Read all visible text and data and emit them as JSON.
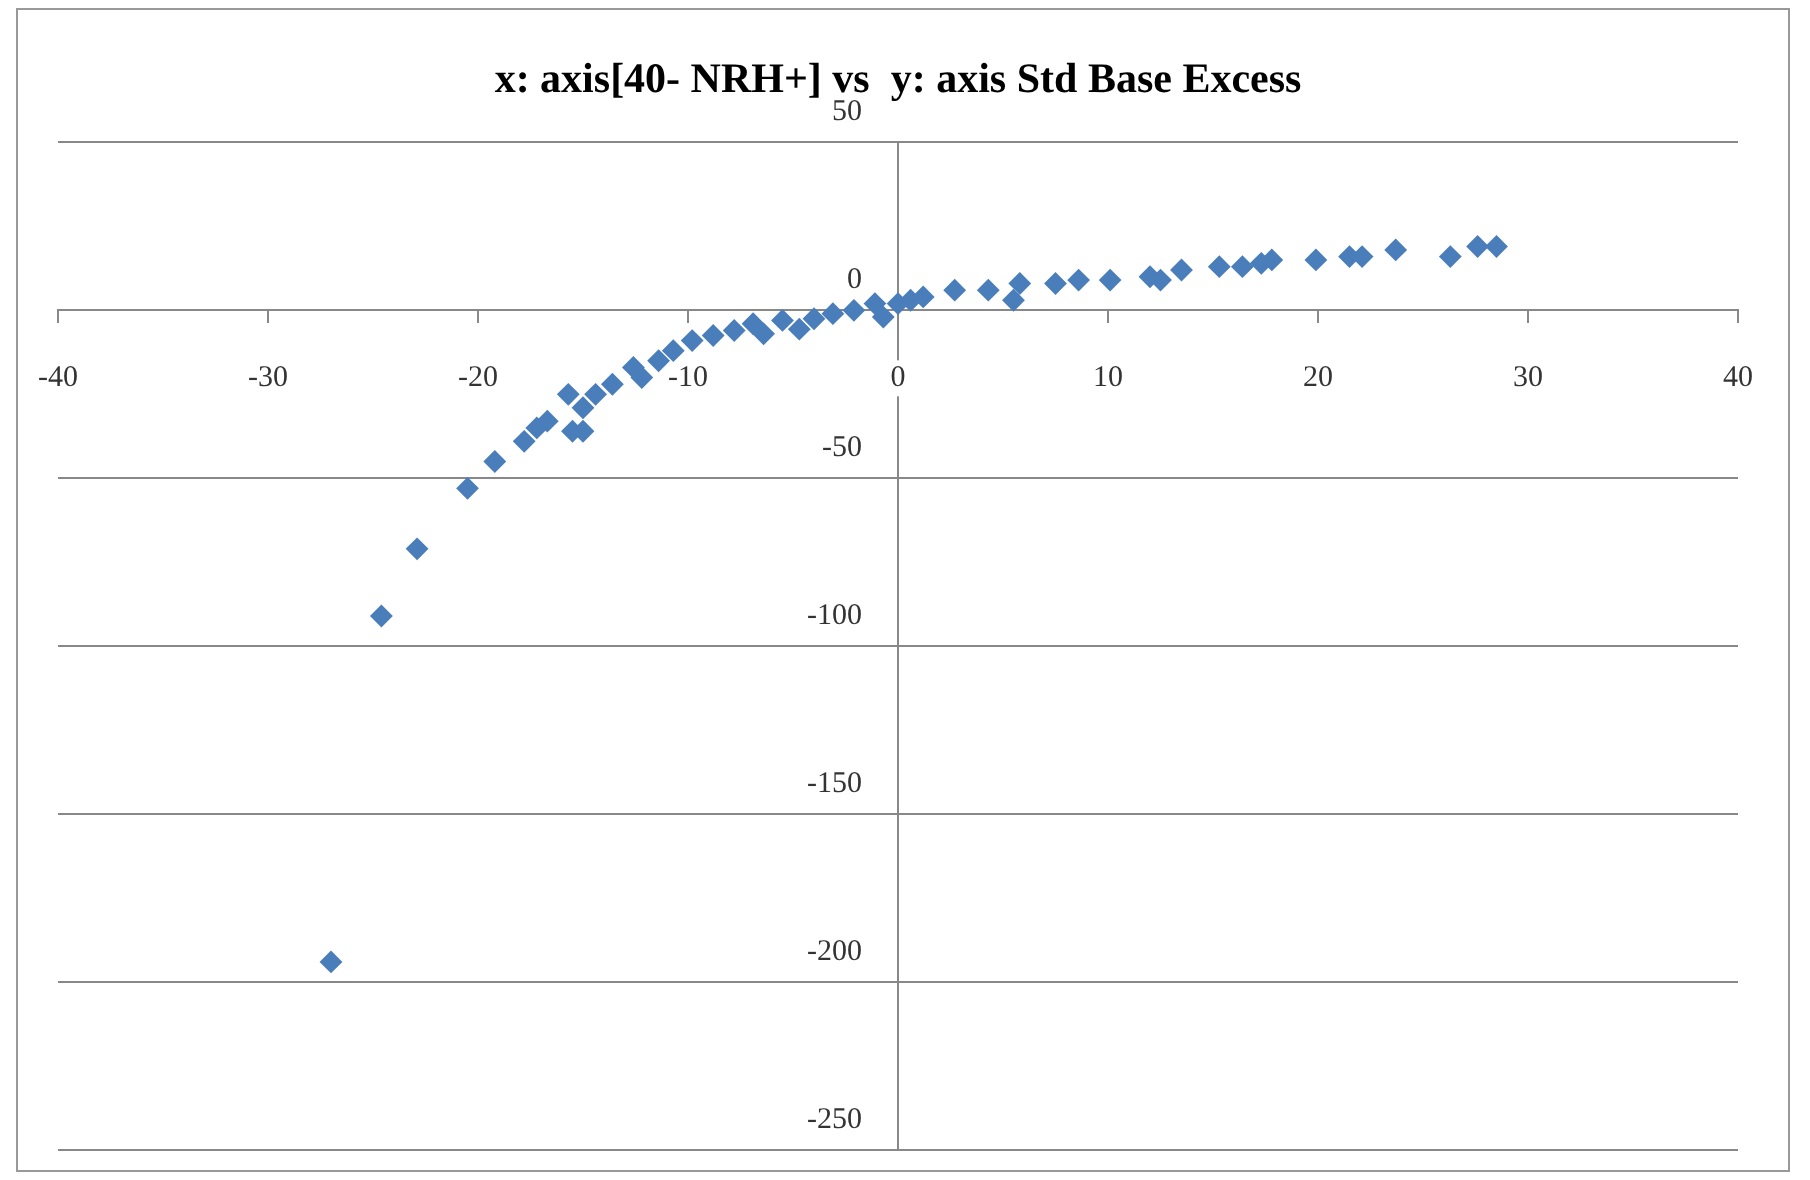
{
  "chart_data": {
    "type": "scatter",
    "title": "x: axis[40- NRH+] vs  y: axis Std Base Excess",
    "x": [
      -27.0,
      -24.6,
      -22.9,
      -20.5,
      -19.2,
      -17.8,
      -17.2,
      -16.7,
      -15.7,
      -15.5,
      -15.0,
      -15.0,
      -14.4,
      -13.6,
      -12.6,
      -12.2,
      -11.4,
      -10.7,
      -9.8,
      -8.8,
      -7.8,
      -6.9,
      -6.4,
      -5.5,
      -4.7,
      -4.0,
      -3.1,
      -2.1,
      -1.1,
      -0.7,
      0,
      0.6,
      1.2,
      2.7,
      4.3,
      5.5,
      5.8,
      7.5,
      8.6,
      10.1,
      12.0,
      12.5,
      13.5,
      15.3,
      16.4,
      17.3,
      17.8,
      19.9,
      21.5,
      22.1,
      23.7,
      26.3,
      27.6,
      28.5
    ],
    "values": [
      -194,
      -91,
      -71,
      -53,
      -45,
      -39,
      -35,
      -33,
      -25,
      -36,
      -36,
      -29,
      -25,
      -22,
      -17,
      -20,
      -15,
      -12,
      -9,
      -7.5,
      -6,
      -4,
      -7,
      -3,
      -5.6,
      -2.5,
      -1,
      0,
      2,
      -2,
      2,
      3,
      4,
      6,
      6,
      3,
      8,
      8,
      9,
      9,
      10,
      9,
      12,
      13,
      13,
      14,
      15,
      15,
      16,
      16,
      18,
      16,
      19,
      19
    ],
    "color": "#4a7ebb",
    "marker": "diamond",
    "xlim": [
      -40,
      40
    ],
    "xticks": [
      -40,
      -30,
      -20,
      -10,
      0,
      10,
      20,
      30,
      40
    ],
    "ylim": [
      -250,
      50
    ],
    "yticks": [
      -250,
      -200,
      -150,
      -100,
      -50,
      0,
      50
    ],
    "grid": "y",
    "legend": false
  }
}
